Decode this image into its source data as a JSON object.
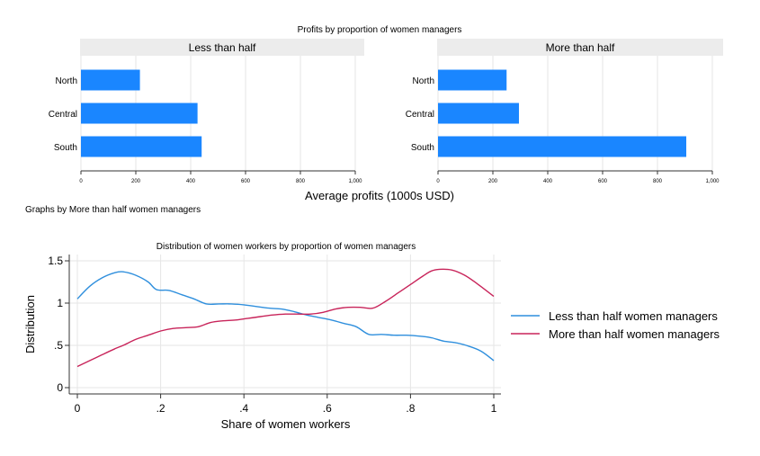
{
  "top_title": "Profits by proportion of women managers",
  "top_xlabel": "Average profits (1000s USD)",
  "top_note": "Graphs by More than half women managers",
  "bottom_title": "Distribution of women workers by proportion of women managers",
  "chart_data": [
    {
      "type": "bar",
      "orientation": "horizontal",
      "panel": "Less than half",
      "categories": [
        "North",
        "Central",
        "South"
      ],
      "values": [
        215,
        425,
        440
      ],
      "xlim": [
        0,
        1000
      ],
      "xticks": [
        "0",
        "200",
        "400",
        "600",
        "800",
        "1,000"
      ],
      "color": "#1a86ff",
      "grid": true
    },
    {
      "type": "bar",
      "orientation": "horizontal",
      "panel": "More than half",
      "categories": [
        "North",
        "Central",
        "South"
      ],
      "values": [
        250,
        295,
        905
      ],
      "xlim": [
        0,
        1000
      ],
      "xticks": [
        "0",
        "200",
        "400",
        "600",
        "800",
        "1,000"
      ],
      "color": "#1a86ff",
      "grid": true
    },
    {
      "type": "line",
      "xlabel": "Share of women workers",
      "ylabel": "Distribution",
      "xlim": [
        0,
        1
      ],
      "ylim": [
        0,
        1.6
      ],
      "xticks": [
        {
          "v": 0,
          "label": "0"
        },
        {
          "v": 0.2,
          "label": ".2"
        },
        {
          "v": 0.4,
          "label": ".4"
        },
        {
          "v": 0.6,
          "label": ".6"
        },
        {
          "v": 0.8,
          "label": ".8"
        },
        {
          "v": 1,
          "label": "1"
        }
      ],
      "yticks": [
        {
          "v": 0,
          "label": "0"
        },
        {
          "v": 0.5,
          "label": ".5"
        },
        {
          "v": 1,
          "label": "1"
        },
        {
          "v": 1.5,
          "label": "1.5"
        }
      ],
      "grid": true,
      "legend_position": "right",
      "series": [
        {
          "name": "Less than half women managers",
          "color": "#2f8fdd",
          "x": [
            0,
            0.03,
            0.06,
            0.09,
            0.11,
            0.14,
            0.17,
            0.19,
            0.22,
            0.25,
            0.28,
            0.31,
            0.34,
            0.37,
            0.4,
            0.43,
            0.46,
            0.49,
            0.52,
            0.55,
            0.58,
            0.61,
            0.64,
            0.67,
            0.7,
            0.73,
            0.76,
            0.79,
            0.82,
            0.85,
            0.88,
            0.91,
            0.94,
            0.97,
            1.0
          ],
          "y": [
            1.05,
            1.2,
            1.3,
            1.36,
            1.37,
            1.33,
            1.25,
            1.16,
            1.15,
            1.1,
            1.05,
            0.99,
            0.99,
            0.99,
            0.98,
            0.96,
            0.94,
            0.93,
            0.9,
            0.86,
            0.83,
            0.8,
            0.76,
            0.72,
            0.63,
            0.63,
            0.62,
            0.62,
            0.61,
            0.59,
            0.55,
            0.53,
            0.49,
            0.43,
            0.32
          ]
        },
        {
          "name": "More than half women managers",
          "color": "#c8245a",
          "x": [
            0,
            0.03,
            0.06,
            0.09,
            0.11,
            0.14,
            0.17,
            0.2,
            0.23,
            0.26,
            0.29,
            0.32,
            0.35,
            0.38,
            0.41,
            0.44,
            0.47,
            0.5,
            0.53,
            0.56,
            0.59,
            0.62,
            0.65,
            0.68,
            0.71,
            0.74,
            0.77,
            0.8,
            0.83,
            0.85,
            0.87,
            0.9,
            0.93,
            0.96,
            1.0
          ],
          "y": [
            0.25,
            0.32,
            0.39,
            0.46,
            0.5,
            0.57,
            0.62,
            0.67,
            0.7,
            0.71,
            0.72,
            0.77,
            0.79,
            0.8,
            0.82,
            0.84,
            0.86,
            0.87,
            0.87,
            0.87,
            0.89,
            0.93,
            0.95,
            0.95,
            0.94,
            1.02,
            1.12,
            1.22,
            1.32,
            1.38,
            1.4,
            1.39,
            1.33,
            1.23,
            1.08
          ]
        }
      ]
    }
  ]
}
